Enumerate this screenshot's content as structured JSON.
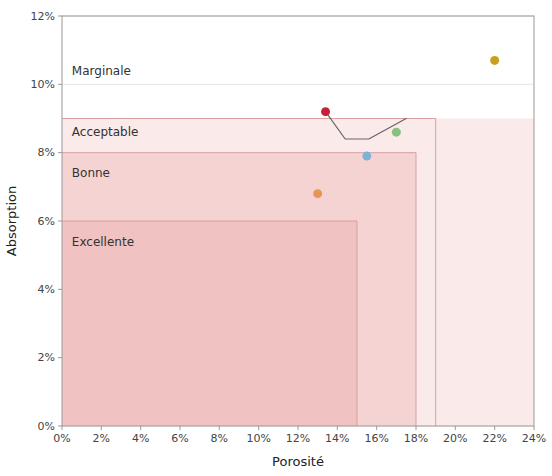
{
  "chart_data": {
    "type": "scatter",
    "xlabel": "Porosité",
    "ylabel": "Absorption",
    "xlim": [
      0,
      0.24
    ],
    "ylim": [
      0,
      0.12
    ],
    "xticks": [
      {
        "value": 0.0,
        "label": "0%"
      },
      {
        "value": 0.02,
        "label": "2%"
      },
      {
        "value": 0.04,
        "label": "4%"
      },
      {
        "value": 0.06,
        "label": "6%"
      },
      {
        "value": 0.08,
        "label": "8%"
      },
      {
        "value": 0.1,
        "label": "10%"
      },
      {
        "value": 0.12,
        "label": "12%"
      },
      {
        "value": 0.14,
        "label": "14%"
      },
      {
        "value": 0.16,
        "label": "16%"
      },
      {
        "value": 0.18,
        "label": "18%"
      },
      {
        "value": 0.2,
        "label": "20%"
      },
      {
        "value": 0.22,
        "label": "22%"
      },
      {
        "value": 0.24,
        "label": "24%"
      }
    ],
    "yticks": [
      {
        "value": 0.0,
        "label": "0%"
      },
      {
        "value": 0.02,
        "label": "2%"
      },
      {
        "value": 0.04,
        "label": "4%"
      },
      {
        "value": 0.06,
        "label": "6%"
      },
      {
        "value": 0.08,
        "label": "8%"
      },
      {
        "value": 0.1,
        "label": "10%"
      },
      {
        "value": 0.12,
        "label": "12%"
      }
    ],
    "grid": "y",
    "zones": [
      {
        "x0": 0,
        "x1": 0.19,
        "y0": 0,
        "y1": 0.09,
        "color": "#fae8e8",
        "border_color": "#d8a0a0"
      },
      {
        "x0": 0.19,
        "x1": 0.24,
        "y0": 0,
        "y1": 0.09,
        "color": "#fae8e8"
      },
      {
        "x0": 0,
        "x1": 0.18,
        "y0": 0,
        "y1": 0.08,
        "color": "#f5d0d0",
        "border_color": "#d8a0a0"
      },
      {
        "x0": 0,
        "x1": 0.15,
        "y0": 0,
        "y1": 0.06,
        "color": "#f0c0c0",
        "border_color": "#d8a0a0"
      }
    ],
    "annotations": [
      {
        "text": "Excellente",
        "x": 0.005,
        "y": 0.054,
        "color": "#333333"
      },
      {
        "text": "Bonne",
        "x": 0.005,
        "y": 0.074,
        "color": "#333333"
      },
      {
        "text": "Acceptable",
        "x": 0.005,
        "y": 0.086,
        "color": "#333333"
      },
      {
        "text": "Marginale",
        "x": 0.005,
        "y": 0.104,
        "color": "#333333"
      }
    ],
    "x": [
      0.13,
      0.155,
      0.17,
      0.22,
      0.134
    ],
    "values": [
      0.068,
      0.079,
      0.086,
      0.107,
      0.092
    ],
    "colors": [
      "#e8955a",
      "#7ab3d4",
      "#88c080",
      "#c8a020",
      "#c8203a"
    ],
    "bracket": {
      "x": [
        0.134,
        0.134,
        0.144,
        0.156,
        0.175
      ],
      "y": [
        0.092,
        0.092,
        0.084,
        0.084,
        0.09
      ],
      "color": "#666666"
    }
  }
}
